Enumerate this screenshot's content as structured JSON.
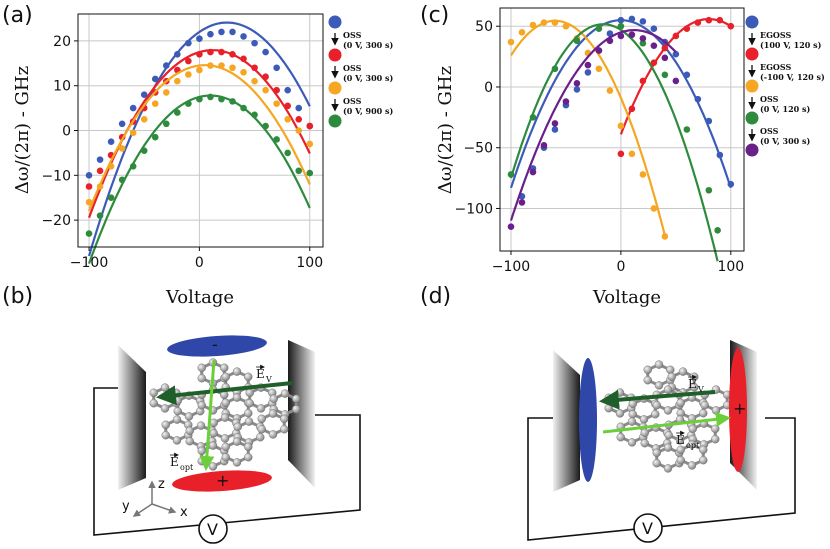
{
  "panels": {
    "a": "(a)",
    "b": "(b)",
    "c": "(c)",
    "d": "(d)"
  },
  "colors": {
    "blue": "#3c5bb8",
    "red": "#e8202a",
    "orange": "#f5a623",
    "green": "#2e8b3e",
    "purple": "#6a1f8a",
    "dark_green_arrow": "#1f5f2a",
    "light_green_arrow": "#6bcf3a"
  },
  "chart_data": [
    {
      "type": "scatter",
      "panel": "a",
      "title": "",
      "xlabel": "Voltage",
      "ylabel": "Δω/(2π) - GHz",
      "xlim": [
        -110,
        112
      ],
      "ylim": [
        -26,
        26
      ],
      "xticks": [
        -100,
        0,
        100
      ],
      "xtick_labels": [
        "−100",
        "0",
        "100"
      ],
      "yticks": [
        -20,
        -10,
        0,
        10,
        20
      ],
      "ytick_labels": [
        "−20",
        "−10",
        "0",
        "10",
        "20"
      ],
      "grid": true,
      "series": [
        {
          "color": "blue",
          "fit": [
            -0.00333,
            0.167,
            22.0
          ],
          "x": [
            -100,
            -90,
            -80,
            -70,
            -60,
            -50,
            -40,
            -30,
            -20,
            -10,
            0,
            10,
            20,
            30,
            40,
            50,
            60,
            70,
            80,
            90,
            100
          ],
          "y": [
            -10,
            -6.5,
            -2.5,
            1.5,
            5,
            8,
            11.5,
            14.5,
            17,
            19.5,
            20.5,
            21.5,
            22,
            22,
            21,
            19.5,
            17.5,
            14,
            9,
            5,
            1
          ]
        },
        {
          "color": "red",
          "fit": [
            -0.00298,
            0.0717,
            17.5
          ],
          "x": [
            -100,
            -90,
            -80,
            -70,
            -60,
            -50,
            -40,
            -30,
            -20,
            -10,
            0,
            10,
            20,
            30,
            40,
            50,
            60,
            70,
            80,
            90,
            100
          ],
          "y": [
            -12.5,
            -9,
            -5.5,
            -1.5,
            2,
            5,
            8.5,
            11,
            13.5,
            15.5,
            17,
            17.5,
            17.5,
            17,
            16,
            14,
            12,
            9,
            5.5,
            2.5,
            1
          ]
        },
        {
          "color": "orange",
          "fit": [
            -0.00295,
            0.0295,
            14.5
          ],
          "x": [
            -100,
            -90,
            -80,
            -70,
            -60,
            -50,
            -40,
            -30,
            -20,
            -10,
            0,
            10,
            20,
            30,
            40,
            50,
            60,
            70,
            80,
            90,
            100
          ],
          "y": [
            -16,
            -12.5,
            -8,
            -4,
            -0.5,
            2.5,
            6,
            8.5,
            11,
            12.5,
            13.5,
            14.5,
            14.5,
            14,
            13,
            11,
            9,
            6,
            2.5,
            0,
            -3
          ]
        },
        {
          "color": "green",
          "fit": [
            -0.0031,
            0.062,
            7.5
          ],
          "x": [
            -100,
            -90,
            -80,
            -70,
            -60,
            -50,
            -40,
            -30,
            -20,
            -10,
            0,
            10,
            20,
            30,
            40,
            50,
            60,
            70,
            80,
            90,
            100
          ],
          "y": [
            -23,
            -19,
            -15,
            -11,
            -8,
            -4.5,
            -1.5,
            1.5,
            4,
            6,
            7,
            7.5,
            7,
            6.5,
            5,
            3.5,
            1,
            -2,
            -5,
            -9,
            -9.5
          ]
        }
      ],
      "legend": [
        {
          "color": "blue",
          "text": "OSS",
          "sub": "(0 V, 300 s)"
        },
        {
          "color": "red",
          "text": "OSS",
          "sub": "(0 V, 300 s)"
        },
        {
          "color": "orange",
          "text": "OSS",
          "sub": "(0 V, 900 s)"
        },
        {
          "color": "green",
          "text": "",
          "sub": ""
        }
      ]
    },
    {
      "type": "scatter",
      "panel": "c",
      "title": "",
      "xlabel": "Voltage",
      "ylabel": "Δω/(2π) - GHz",
      "xlim": [
        -110,
        112
      ],
      "ylim": [
        -135,
        65
      ],
      "xticks": [
        -100,
        0,
        100
      ],
      "xtick_labels": [
        "−100",
        "0",
        "100"
      ],
      "yticks": [
        -100,
        -50,
        0,
        50
      ],
      "ytick_labels": [
        "−100",
        "−50",
        "0",
        "50"
      ],
      "grid": true,
      "series": [
        {
          "color": "blue",
          "fit": [
            -0.0138,
            0.0,
            55.0
          ],
          "xrange": [
            -100,
            100
          ],
          "x": [
            -90,
            -80,
            -70,
            -60,
            -50,
            -40,
            -30,
            -20,
            -10,
            0,
            10,
            20,
            30,
            40,
            50,
            60,
            70,
            80,
            90,
            100
          ],
          "y": [
            -90,
            -67,
            -50,
            -35,
            -15,
            -2,
            12,
            30,
            44,
            55,
            56,
            54,
            48,
            37,
            27,
            10,
            -10,
            -28,
            -56,
            -80
          ]
        },
        {
          "color": "red",
          "fit": [
            -0.0148,
            2.37,
            -39.0
          ],
          "xrange": [
            0,
            100
          ],
          "x": [
            0,
            10,
            20,
            30,
            40,
            50,
            60,
            70,
            80,
            90,
            100
          ],
          "y": [
            -55,
            -18,
            5,
            20,
            32,
            42,
            48,
            53,
            55,
            55,
            50
          ]
        },
        {
          "color": "orange",
          "fit": [
            -0.0177,
            -2.12,
            -9.0
          ],
          "xrange": [
            -100,
            40
          ],
          "x": [
            -100,
            -90,
            -80,
            -70,
            -60,
            -50,
            -40,
            -30,
            -20,
            -10,
            0,
            10,
            20,
            30,
            40
          ],
          "y": [
            37,
            45,
            51,
            53,
            53,
            50,
            40,
            28,
            15,
            -3,
            -32,
            -55,
            -72,
            -100,
            -123
          ]
        },
        {
          "color": "green",
          "fit": [
            -0.018,
            -0.58,
            47.0
          ],
          "xrange": [
            -100,
            88
          ],
          "x": [
            -100,
            -80,
            -60,
            -40,
            -20,
            0,
            20,
            40,
            60,
            80,
            88
          ],
          "y": [
            -72,
            -25,
            15,
            38,
            48,
            50,
            36,
            10,
            -35,
            -85,
            -118
          ]
        },
        {
          "color": "purple",
          "fit": [
            -0.0125,
            0.3,
            45.0
          ],
          "xrange": [
            -100,
            50
          ],
          "x": [
            -100,
            -90,
            -80,
            -70,
            -60,
            -50,
            -40,
            -30,
            -20,
            -10,
            0,
            10,
            20,
            30,
            40,
            50
          ],
          "y": [
            -115,
            -95,
            -70,
            -48,
            -30,
            -12,
            3,
            18,
            30,
            38,
            42,
            43,
            40,
            34,
            24,
            5
          ]
        }
      ],
      "legend": [
        {
          "color": "blue",
          "text": "EGOSS",
          "sub": "(100 V, 120 s)"
        },
        {
          "color": "red",
          "text": "EGOSS",
          "sub": "(-100 V, 120 s)"
        },
        {
          "color": "orange",
          "text": "OSS",
          "sub": "(0 V, 120 s)"
        },
        {
          "color": "green",
          "text": "OSS",
          "sub": "(0 V, 300 s)"
        },
        {
          "color": "purple",
          "text": "",
          "sub": ""
        }
      ]
    }
  ],
  "schematic": {
    "plus_sign": "+",
    "minus_sign": "-",
    "field_v": "E",
    "field_v_sub": "V",
    "field_opt": "E",
    "field_opt_sub": "opt",
    "meter": "V",
    "axis_z": "z",
    "axis_y": "y",
    "axis_x": "x"
  }
}
